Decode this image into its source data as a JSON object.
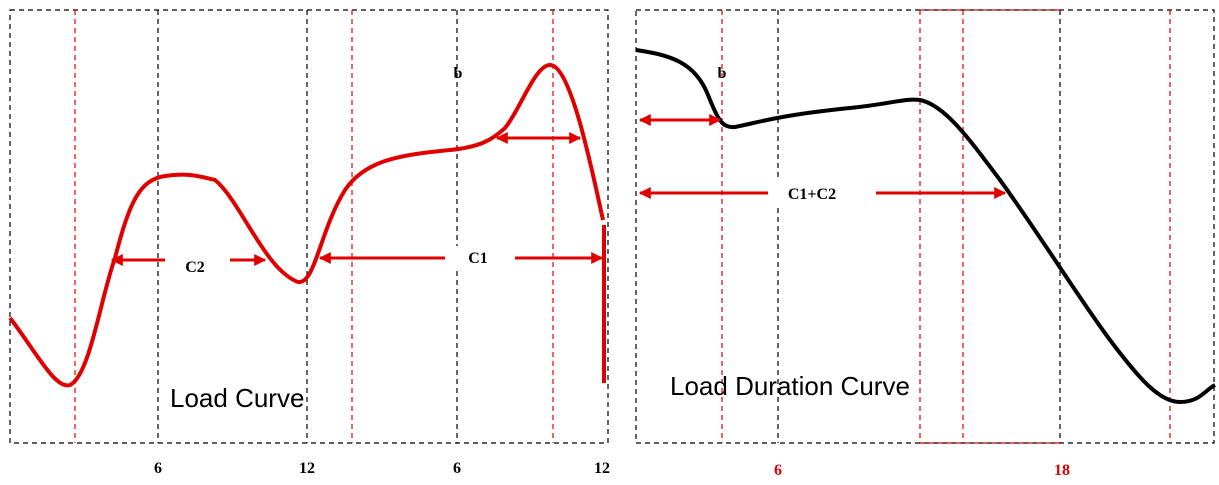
{
  "left_panel": {
    "marker": "b",
    "span_short": "C2",
    "span_long": "C1",
    "caption": "Load Curve",
    "axis_labels": [
      "6",
      "12",
      "6",
      "12"
    ]
  },
  "right_panel": {
    "marker": "b",
    "span": "C1+C2",
    "caption": "Load Duration Curve",
    "axis_labels": [
      "6",
      "18"
    ]
  }
}
